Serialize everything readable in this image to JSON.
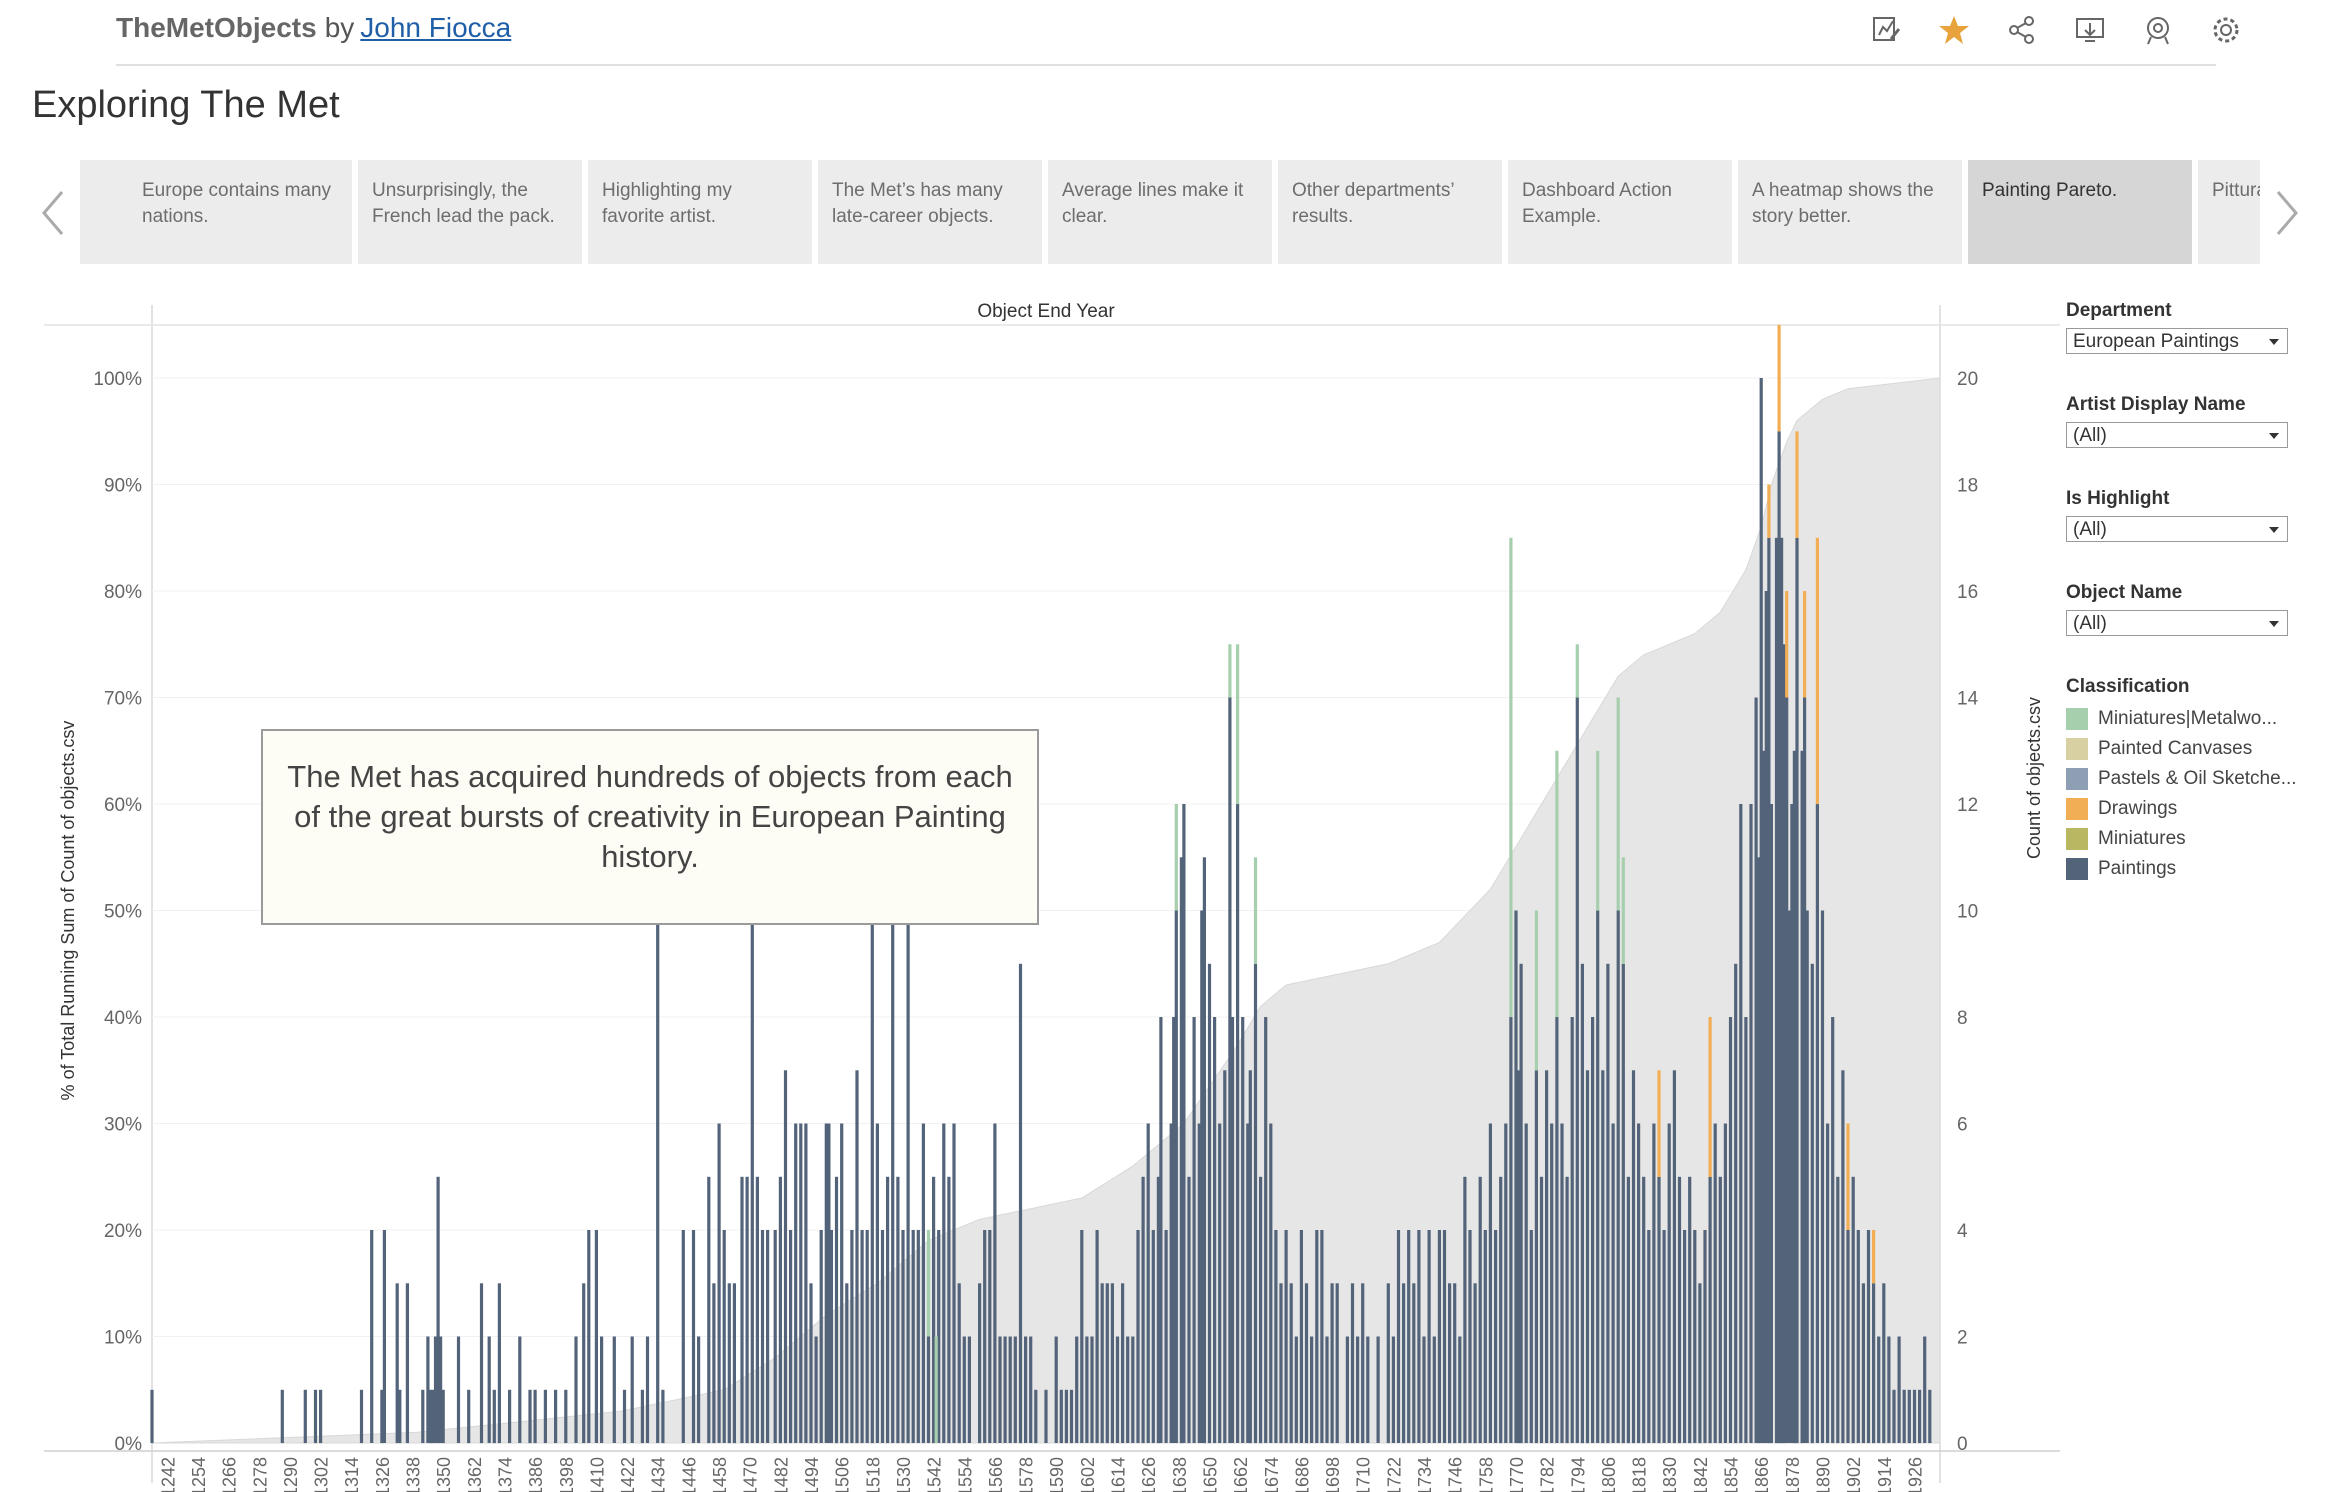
{
  "header": {
    "app_name": "TheMetObjects",
    "by": "by",
    "author": "John Fiocca",
    "icons": [
      "edit-icon",
      "favorite-star-icon",
      "share-icon",
      "download-icon",
      "metrics-icon",
      "settings-icon"
    ],
    "star_color": "#e8a33c"
  },
  "title": "Exploring The Met",
  "story_points": [
    {
      "label": "..."
    },
    {
      "label": "Europe contains many nations."
    },
    {
      "label": "Unsurprisingly, the French lead the pack."
    },
    {
      "label": "Highlighting my favorite artist."
    },
    {
      "label": "The Met’s has many late-career objects."
    },
    {
      "label": "Average lines make it clear."
    },
    {
      "label": "Other departments’ results."
    },
    {
      "label": "Dashboard Action Example."
    },
    {
      "label": "A heatmap shows the story better."
    },
    {
      "label": "Painting Pareto."
    },
    {
      "label": "Pittura"
    }
  ],
  "active_story_index": 9,
  "annotation": "The Met has acquired hundreds of objects from each of the great bursts of creativity in European Painting history.",
  "filters": [
    {
      "label": "Department",
      "value": "European Paintings"
    },
    {
      "label": "Artist Display Name",
      "value": "(All)"
    },
    {
      "label": "Is Highlight",
      "value": "(All)"
    },
    {
      "label": "Object Name",
      "value": "(All)"
    }
  ],
  "legend": {
    "title": "Classification",
    "items": [
      {
        "name": "Miniatures|Metalwo...",
        "color": "#a6cfae"
      },
      {
        "name": "Painted Canvases",
        "color": "#d8cfa2"
      },
      {
        "name": "Pastels & Oil Sketche...",
        "color": "#8e9fb5"
      },
      {
        "name": "Drawings",
        "color": "#f2ae55"
      },
      {
        "name": "Miniatures",
        "color": "#b9b762"
      },
      {
        "name": "Paintings",
        "color": "#53647a"
      }
    ]
  },
  "chart_data": {
    "type": "bar",
    "title": "Object End Year",
    "xlabel": "",
    "ylabel_left": "% of Total Running Sum of Count of objects.csv",
    "ylabel_right": "Count of objects.csv",
    "y_left_ticks": [
      "0%",
      "10%",
      "20%",
      "30%",
      "40%",
      "50%",
      "60%",
      "70%",
      "80%",
      "90%",
      "100%"
    ],
    "y_left_range": [
      0,
      100
    ],
    "y_right_ticks": [
      0,
      2,
      4,
      6,
      8,
      10,
      12,
      14,
      16,
      18,
      20
    ],
    "y_right_range": [
      0,
      20
    ],
    "x_range": [
      1236,
      1936
    ],
    "x_ticks": [
      1242,
      1254,
      1266,
      1278,
      1290,
      1302,
      1314,
      1326,
      1338,
      1350,
      1362,
      1374,
      1386,
      1398,
      1410,
      1422,
      1434,
      1446,
      1458,
      1470,
      1482,
      1494,
      1506,
      1518,
      1530,
      1542,
      1554,
      1566,
      1578,
      1590,
      1602,
      1614,
      1626,
      1638,
      1650,
      1662,
      1674,
      1686,
      1698,
      1710,
      1722,
      1734,
      1746,
      1758,
      1770,
      1782,
      1794,
      1806,
      1818,
      1830,
      1842,
      1854,
      1866,
      1878,
      1890,
      1902,
      1914,
      1926
    ],
    "bar_series": "Paintings",
    "bars": [
      [
        1236,
        1
      ],
      [
        1287,
        1
      ],
      [
        1296,
        1
      ],
      [
        1300,
        1
      ],
      [
        1302,
        1
      ],
      [
        1318,
        1
      ],
      [
        1322,
        4
      ],
      [
        1326,
        1
      ],
      [
        1327,
        4
      ],
      [
        1332,
        3
      ],
      [
        1333,
        1
      ],
      [
        1336,
        3
      ],
      [
        1342,
        1
      ],
      [
        1344,
        2
      ],
      [
        1345,
        1
      ],
      [
        1346,
        1
      ],
      [
        1347,
        2
      ],
      [
        1348,
        5
      ],
      [
        1349,
        2
      ],
      [
        1350,
        1
      ],
      [
        1356,
        2
      ],
      [
        1360,
        1
      ],
      [
        1365,
        3
      ],
      [
        1368,
        2
      ],
      [
        1370,
        1
      ],
      [
        1372,
        3
      ],
      [
        1376,
        1
      ],
      [
        1380,
        2
      ],
      [
        1384,
        1
      ],
      [
        1386,
        1
      ],
      [
        1390,
        1
      ],
      [
        1394,
        1
      ],
      [
        1398,
        1
      ],
      [
        1402,
        2
      ],
      [
        1405,
        3
      ],
      [
        1407,
        4
      ],
      [
        1410,
        4
      ],
      [
        1412,
        2
      ],
      [
        1417,
        2
      ],
      [
        1421,
        1
      ],
      [
        1424,
        2
      ],
      [
        1428,
        1
      ],
      [
        1430,
        2
      ],
      [
        1434,
        10
      ],
      [
        1436,
        1
      ],
      [
        1444,
        4
      ],
      [
        1448,
        4
      ],
      [
        1450,
        2
      ],
      [
        1454,
        5
      ],
      [
        1456,
        3
      ],
      [
        1458,
        6
      ],
      [
        1460,
        4
      ],
      [
        1462,
        3
      ],
      [
        1464,
        3
      ],
      [
        1467,
        5
      ],
      [
        1469,
        5
      ],
      [
        1471,
        12
      ],
      [
        1473,
        5
      ],
      [
        1475,
        4
      ],
      [
        1477,
        4
      ],
      [
        1480,
        4
      ],
      [
        1482,
        5
      ],
      [
        1484,
        7
      ],
      [
        1486,
        4
      ],
      [
        1488,
        6
      ],
      [
        1490,
        6
      ],
      [
        1492,
        6
      ],
      [
        1494,
        3
      ],
      [
        1496,
        2
      ],
      [
        1498,
        4
      ],
      [
        1500,
        6
      ],
      [
        1501,
        6
      ],
      [
        1502,
        4
      ],
      [
        1504,
        5
      ],
      [
        1506,
        6
      ],
      [
        1508,
        3
      ],
      [
        1510,
        4
      ],
      [
        1512,
        7
      ],
      [
        1514,
        4
      ],
      [
        1516,
        4
      ],
      [
        1518,
        13
      ],
      [
        1520,
        6
      ],
      [
        1522,
        4
      ],
      [
        1524,
        5
      ],
      [
        1526,
        10
      ],
      [
        1528,
        5
      ],
      [
        1530,
        4
      ],
      [
        1532,
        11
      ],
      [
        1534,
        4
      ],
      [
        1536,
        4
      ],
      [
        1538,
        6
      ],
      [
        1540,
        2
      ],
      [
        1542,
        5
      ],
      [
        1544,
        4
      ],
      [
        1546,
        6
      ],
      [
        1548,
        5
      ],
      [
        1550,
        6
      ],
      [
        1552,
        3
      ],
      [
        1554,
        2
      ],
      [
        1556,
        2
      ],
      [
        1560,
        3
      ],
      [
        1562,
        4
      ],
      [
        1564,
        4
      ],
      [
        1566,
        6
      ],
      [
        1568,
        2
      ],
      [
        1570,
        2
      ],
      [
        1572,
        2
      ],
      [
        1574,
        2
      ],
      [
        1576,
        9
      ],
      [
        1578,
        2
      ],
      [
        1580,
        2
      ],
      [
        1582,
        1
      ],
      [
        1586,
        1
      ],
      [
        1590,
        2
      ],
      [
        1592,
        1
      ],
      [
        1594,
        1
      ],
      [
        1596,
        1
      ],
      [
        1598,
        2
      ],
      [
        1600,
        4
      ],
      [
        1602,
        2
      ],
      [
        1604,
        2
      ],
      [
        1606,
        4
      ],
      [
        1608,
        3
      ],
      [
        1610,
        3
      ],
      [
        1612,
        3
      ],
      [
        1614,
        2
      ],
      [
        1616,
        3
      ],
      [
        1618,
        2
      ],
      [
        1620,
        2
      ],
      [
        1622,
        4
      ],
      [
        1624,
        5
      ],
      [
        1626,
        6
      ],
      [
        1628,
        4
      ],
      [
        1630,
        5
      ],
      [
        1631,
        8
      ],
      [
        1633,
        4
      ],
      [
        1635,
        6
      ],
      [
        1636,
        8
      ],
      [
        1637,
        10
      ],
      [
        1639,
        11
      ],
      [
        1640,
        12
      ],
      [
        1642,
        5
      ],
      [
        1644,
        8
      ],
      [
        1646,
        6
      ],
      [
        1647,
        10
      ],
      [
        1648,
        11
      ],
      [
        1650,
        9
      ],
      [
        1652,
        8
      ],
      [
        1654,
        6
      ],
      [
        1656,
        7
      ],
      [
        1658,
        14
      ],
      [
        1659,
        8
      ],
      [
        1661,
        12
      ],
      [
        1663,
        8
      ],
      [
        1665,
        6
      ],
      [
        1666,
        7
      ],
      [
        1668,
        9
      ],
      [
        1670,
        5
      ],
      [
        1672,
        8
      ],
      [
        1674,
        6
      ],
      [
        1676,
        4
      ],
      [
        1678,
        3
      ],
      [
        1680,
        4
      ],
      [
        1682,
        3
      ],
      [
        1684,
        2
      ],
      [
        1686,
        4
      ],
      [
        1688,
        3
      ],
      [
        1690,
        2
      ],
      [
        1692,
        4
      ],
      [
        1694,
        4
      ],
      [
        1696,
        2
      ],
      [
        1698,
        3
      ],
      [
        1700,
        3
      ],
      [
        1704,
        2
      ],
      [
        1706,
        3
      ],
      [
        1708,
        2
      ],
      [
        1710,
        3
      ],
      [
        1712,
        2
      ],
      [
        1716,
        2
      ],
      [
        1720,
        3
      ],
      [
        1722,
        2
      ],
      [
        1724,
        4
      ],
      [
        1726,
        3
      ],
      [
        1728,
        4
      ],
      [
        1730,
        3
      ],
      [
        1732,
        4
      ],
      [
        1734,
        2
      ],
      [
        1736,
        4
      ],
      [
        1738,
        2
      ],
      [
        1740,
        4
      ],
      [
        1742,
        4
      ],
      [
        1744,
        3
      ],
      [
        1746,
        3
      ],
      [
        1748,
        2
      ],
      [
        1750,
        5
      ],
      [
        1752,
        4
      ],
      [
        1754,
        3
      ],
      [
        1756,
        5
      ],
      [
        1758,
        4
      ],
      [
        1760,
        6
      ],
      [
        1762,
        4
      ],
      [
        1764,
        5
      ],
      [
        1766,
        6
      ],
      [
        1768,
        8
      ],
      [
        1770,
        10
      ],
      [
        1771,
        7
      ],
      [
        1772,
        9
      ],
      [
        1774,
        6
      ],
      [
        1776,
        4
      ],
      [
        1778,
        7
      ],
      [
        1780,
        5
      ],
      [
        1782,
        7
      ],
      [
        1784,
        6
      ],
      [
        1786,
        8
      ],
      [
        1788,
        6
      ],
      [
        1790,
        5
      ],
      [
        1792,
        8
      ],
      [
        1794,
        14
      ],
      [
        1796,
        9
      ],
      [
        1798,
        7
      ],
      [
        1800,
        8
      ],
      [
        1802,
        10
      ],
      [
        1804,
        7
      ],
      [
        1806,
        9
      ],
      [
        1808,
        6
      ],
      [
        1810,
        10
      ],
      [
        1812,
        9
      ],
      [
        1814,
        5
      ],
      [
        1816,
        7
      ],
      [
        1818,
        6
      ],
      [
        1820,
        5
      ],
      [
        1822,
        4
      ],
      [
        1824,
        6
      ],
      [
        1826,
        5
      ],
      [
        1828,
        4
      ],
      [
        1830,
        6
      ],
      [
        1832,
        7
      ],
      [
        1834,
        5
      ],
      [
        1836,
        4
      ],
      [
        1838,
        5
      ],
      [
        1840,
        4
      ],
      [
        1842,
        3
      ],
      [
        1844,
        4
      ],
      [
        1846,
        5
      ],
      [
        1848,
        6
      ],
      [
        1850,
        5
      ],
      [
        1852,
        6
      ],
      [
        1854,
        8
      ],
      [
        1856,
        9
      ],
      [
        1858,
        12
      ],
      [
        1860,
        8
      ],
      [
        1862,
        12
      ],
      [
        1864,
        14
      ],
      [
        1865,
        11
      ],
      [
        1866,
        20
      ],
      [
        1867,
        13
      ],
      [
        1868,
        16
      ],
      [
        1869,
        17
      ],
      [
        1870,
        12
      ],
      [
        1872,
        17
      ],
      [
        1873,
        19
      ],
      [
        1874,
        17
      ],
      [
        1875,
        15
      ],
      [
        1876,
        14
      ],
      [
        1877,
        10
      ],
      [
        1878,
        12
      ],
      [
        1879,
        13
      ],
      [
        1880,
        17
      ],
      [
        1882,
        13
      ],
      [
        1883,
        14
      ],
      [
        1884,
        10
      ],
      [
        1886,
        9
      ],
      [
        1888,
        12
      ],
      [
        1890,
        10
      ],
      [
        1892,
        6
      ],
      [
        1894,
        8
      ],
      [
        1896,
        5
      ],
      [
        1898,
        7
      ],
      [
        1900,
        4
      ],
      [
        1902,
        5
      ],
      [
        1904,
        4
      ],
      [
        1906,
        3
      ],
      [
        1908,
        4
      ],
      [
        1910,
        3
      ],
      [
        1912,
        2
      ],
      [
        1914,
        3
      ],
      [
        1916,
        2
      ],
      [
        1918,
        1
      ],
      [
        1920,
        2
      ],
      [
        1922,
        1
      ],
      [
        1924,
        1
      ],
      [
        1926,
        1
      ],
      [
        1928,
        1
      ],
      [
        1930,
        2
      ],
      [
        1932,
        1
      ]
    ],
    "stack_overlays": [
      {
        "x": 1540,
        "extra": 2,
        "classification": "Miniatures"
      },
      {
        "x": 1543,
        "extra": 2,
        "classification": "Miniatures"
      },
      {
        "x": 1637,
        "extra": 2,
        "classification": "Miniatures"
      },
      {
        "x": 1658,
        "extra": 1,
        "classification": "Miniatures"
      },
      {
        "x": 1661,
        "extra": 3,
        "classification": "Miniatures"
      },
      {
        "x": 1668,
        "extra": 2,
        "classification": "Miniatures"
      },
      {
        "x": 1768,
        "extra": 9,
        "classification": "Miniatures"
      },
      {
        "x": 1778,
        "extra": 3,
        "classification": "Miniatures"
      },
      {
        "x": 1794,
        "extra": 1,
        "classification": "Miniatures|Metalwork"
      },
      {
        "x": 1802,
        "extra": 3,
        "classification": "Miniatures"
      },
      {
        "x": 1786,
        "extra": 5,
        "classification": "Miniatures"
      },
      {
        "x": 1810,
        "extra": 4,
        "classification": "Miniatures"
      },
      {
        "x": 1812,
        "extra": 2,
        "classification": "Miniatures"
      },
      {
        "x": 1826,
        "extra": 2,
        "classification": "Drawings"
      },
      {
        "x": 1846,
        "extra": 3,
        "classification": "Drawings"
      },
      {
        "x": 1866,
        "extra": 0,
        "classification": "Paintings"
      },
      {
        "x": 1869,
        "extra": 1,
        "classification": "Drawings"
      },
      {
        "x": 1873,
        "extra": 2,
        "classification": "Drawings"
      },
      {
        "x": 1880,
        "extra": 2,
        "classification": "Drawings"
      },
      {
        "x": 1883,
        "extra": 2,
        "classification": "Drawings"
      },
      {
        "x": 1888,
        "extra": 5,
        "classification": "Drawings"
      },
      {
        "x": 1900,
        "extra": 2,
        "classification": "Drawings"
      },
      {
        "x": 1910,
        "extra": 1,
        "classification": "Drawings"
      },
      {
        "x": 1876,
        "extra": 2,
        "classification": "Drawings"
      }
    ],
    "cumulative_pct": [
      [
        1236,
        0
      ],
      [
        1340,
        1
      ],
      [
        1380,
        2
      ],
      [
        1420,
        3
      ],
      [
        1460,
        5
      ],
      [
        1480,
        8
      ],
      [
        1500,
        12
      ],
      [
        1520,
        15
      ],
      [
        1540,
        19
      ],
      [
        1560,
        21
      ],
      [
        1580,
        22
      ],
      [
        1600,
        23
      ],
      [
        1620,
        26
      ],
      [
        1640,
        30
      ],
      [
        1660,
        37
      ],
      [
        1670,
        41
      ],
      [
        1680,
        43
      ],
      [
        1700,
        44
      ],
      [
        1720,
        45
      ],
      [
        1740,
        47
      ],
      [
        1760,
        52
      ],
      [
        1770,
        56
      ],
      [
        1780,
        60
      ],
      [
        1790,
        64
      ],
      [
        1800,
        68
      ],
      [
        1810,
        72
      ],
      [
        1820,
        74
      ],
      [
        1830,
        75
      ],
      [
        1840,
        76
      ],
      [
        1850,
        78
      ],
      [
        1860,
        82
      ],
      [
        1866,
        86
      ],
      [
        1870,
        90
      ],
      [
        1876,
        94
      ],
      [
        1880,
        96
      ],
      [
        1890,
        98
      ],
      [
        1900,
        99
      ],
      [
        1936,
        100
      ]
    ]
  }
}
